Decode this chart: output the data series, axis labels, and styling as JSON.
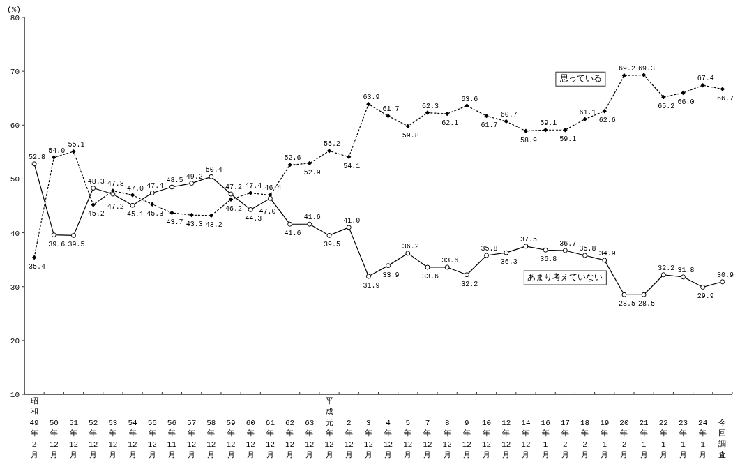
{
  "chart_data": {
    "type": "line",
    "ylabel": "(%)",
    "categories": [
      "昭和49年2月",
      "50年12月",
      "51年12月",
      "52年12月",
      "53年12月",
      "54年12月",
      "55年12月",
      "56年11月",
      "57年12月",
      "58年12月",
      "59年12月",
      "60年12月",
      "61年12月",
      "62年12月",
      "63年12月",
      "平成元年12月",
      "2年12月",
      "3年12月",
      "4年12月",
      "5年12月",
      "7年12月",
      "8年12月",
      "9年12月",
      "10年12月",
      "12年12月",
      "14年12月",
      "16年1月",
      "17年2月",
      "18年2月",
      "19年1月",
      "20年2月",
      "21年1月",
      "22年1月",
      "23年1月",
      "24年1月",
      "今回調査"
    ],
    "series": [
      {
        "name": "思っている",
        "color": "#000000",
        "marker": "diamond",
        "line_style": "dashed",
        "value_labels": [
          "35.4",
          "54.0",
          "55.1",
          "45.2",
          "47.8",
          "47.0",
          "45.3",
          "43.7",
          "43.3",
          "43.2",
          "46.2",
          "47.4",
          "47.0",
          "52.6",
          "52.9",
          "55.2",
          "54.1",
          "63.9",
          "61.7",
          "59.8",
          "62.3",
          "62.1",
          "63.6",
          "61.7",
          "60.7",
          "58.9",
          "59.1",
          "59.1",
          "61.1",
          "62.6",
          "69.2",
          "69.3",
          "65.2",
          "66.0",
          "67.4",
          "66.7"
        ],
        "values": [
          35.4,
          54.0,
          55.1,
          45.2,
          47.8,
          47.0,
          45.3,
          43.7,
          43.3,
          43.2,
          46.2,
          47.4,
          47.0,
          52.6,
          52.9,
          55.2,
          54.1,
          63.9,
          61.7,
          59.8,
          62.3,
          62.1,
          63.6,
          61.7,
          60.7,
          58.9,
          59.1,
          59.1,
          61.1,
          62.6,
          69.2,
          69.3,
          65.2,
          66.0,
          67.4,
          66.7
        ]
      },
      {
        "name": "あまり考えていない",
        "color": "#000000",
        "marker": "circle",
        "line_style": "solid",
        "value_labels": [
          "52.8",
          "39.6",
          "39.5",
          "48.3",
          "47.2",
          "45.1",
          "47.4",
          "48.5",
          "49.2",
          "50.4",
          "47.2",
          "44.3",
          "46.4",
          "41.6",
          "41.6",
          "39.5",
          "41.0",
          "31.9",
          "33.9",
          "36.2",
          "33.6",
          "33.6",
          "32.2",
          "35.8",
          "36.3",
          "37.5",
          "36.8",
          "36.7",
          "35.8",
          "34.9",
          "28.5",
          "28.5",
          "32.2",
          "31.8",
          "29.9",
          "30.9"
        ],
        "values": [
          52.8,
          39.6,
          39.5,
          48.3,
          47.2,
          45.1,
          47.4,
          48.5,
          49.2,
          50.4,
          47.2,
          44.3,
          46.4,
          41.6,
          41.6,
          39.5,
          41.0,
          31.9,
          33.9,
          36.2,
          33.6,
          33.6,
          32.2,
          35.8,
          36.3,
          37.5,
          36.8,
          36.7,
          35.8,
          34.9,
          28.5,
          28.5,
          32.2,
          31.8,
          29.9,
          30.9
        ]
      }
    ],
    "ylim": [
      10,
      80
    ],
    "yticks": [
      10,
      20,
      30,
      40,
      50,
      60,
      70,
      80
    ],
    "data_labels": true
  }
}
